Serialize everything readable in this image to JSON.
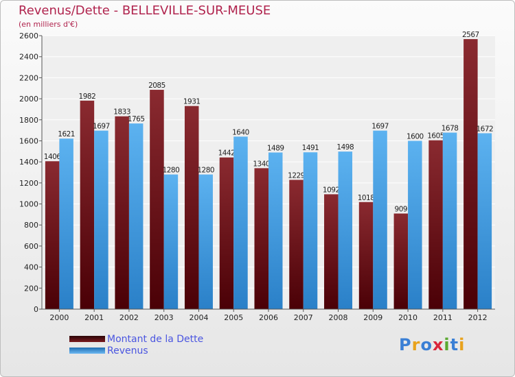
{
  "header": {
    "title": "Revenus/Dette - BELLEVILLE-SUR-MEUSE",
    "subtitle": "(en milliers d'€)"
  },
  "colors": {
    "dette": "#7a1a1f",
    "revenus": "#4aa3e8",
    "title": "#b0234d",
    "legend_text": "#4a55e0"
  },
  "logo": {
    "text": "Proxiti",
    "letters": [
      {
        "ch": "P",
        "color": "#3a7fd5"
      },
      {
        "ch": "r",
        "color": "#e8a21c"
      },
      {
        "ch": "o",
        "color": "#3a7fd5"
      },
      {
        "ch": "x",
        "color": "#d9263c"
      },
      {
        "ch": "i",
        "color": "#5aa831"
      },
      {
        "ch": "t",
        "color": "#3a7fd5"
      },
      {
        "ch": "i",
        "color": "#e8a21c"
      }
    ]
  },
  "legend": {
    "items": [
      {
        "label": "Montant de la Dette",
        "color": "#5c0a10"
      },
      {
        "label": "Revenus",
        "color": "#4aa3e8"
      }
    ]
  },
  "chart_data": {
    "type": "bar",
    "title": "Revenus/Dette - BELLEVILLE-SUR-MEUSE",
    "subtitle": "(en milliers d'€)",
    "categories": [
      "2000",
      "2001",
      "2002",
      "2003",
      "2004",
      "2005",
      "2006",
      "2007",
      "2008",
      "2009",
      "2010",
      "2011",
      "2012"
    ],
    "series": [
      {
        "name": "Montant de la Dette",
        "values": [
          1406,
          1982,
          1833,
          2085,
          1931,
          1442,
          1340,
          1229,
          1092,
          1018,
          909,
          1605,
          2567
        ]
      },
      {
        "name": "Revenus",
        "values": [
          1621,
          1697,
          1765,
          1280,
          1280,
          1640,
          1489,
          1491,
          1498,
          1697,
          1600,
          1678,
          1672
        ]
      }
    ],
    "ylim": [
      0,
      2600
    ],
    "yticks": [
      0,
      200,
      400,
      600,
      800,
      1000,
      1200,
      1400,
      1600,
      1800,
      2000,
      2200,
      2400,
      2600
    ],
    "grid": true,
    "legend_position": "bottom-left"
  }
}
